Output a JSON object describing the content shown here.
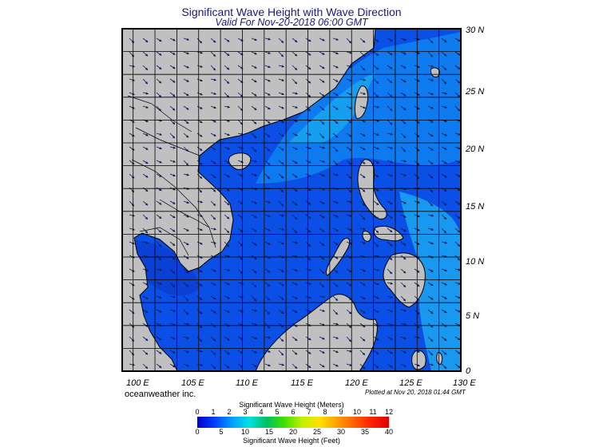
{
  "title": "Significant Wave Height with Wave Direction",
  "subtitle": "Valid For Nov-20-2018 06:00 GMT",
  "credit": "oceanweather inc.",
  "plotted": "Plotted at Nov 20, 2018 01:44 GMT",
  "map": {
    "lon_range": [
      99,
      130
    ],
    "lat_range": [
      0,
      30
    ],
    "land_color": "#c0c0c0",
    "sea_color": "#0a4fe6",
    "arrow_color": "#0a1a55",
    "lat_labels": [
      "30 N",
      "25 N",
      "20 N",
      "15 N",
      "10 N",
      "5 N",
      "0"
    ],
    "lon_labels": [
      "100 E",
      "105 E",
      "110 E",
      "115 E",
      "120 E",
      "125 E",
      "130 E"
    ]
  },
  "colorbar": {
    "meters_title": "Significant Wave Height (Meters)",
    "feet_title": "Significant Wave Height (Feet)",
    "meter_ticks": [
      "0",
      "1",
      "2",
      "3",
      "4",
      "5",
      "6",
      "7",
      "8",
      "9",
      "10",
      "11",
      "12"
    ],
    "feet_ticks": [
      "0",
      "5",
      "10",
      "15",
      "20",
      "25",
      "30",
      "35",
      "40"
    ],
    "colors": [
      "#0000c8",
      "#0040ff",
      "#00a0ff",
      "#00e0e0",
      "#00c060",
      "#40e000",
      "#c0f000",
      "#ffe000",
      "#ffa000",
      "#ff6000",
      "#ff2000",
      "#e00000"
    ]
  }
}
